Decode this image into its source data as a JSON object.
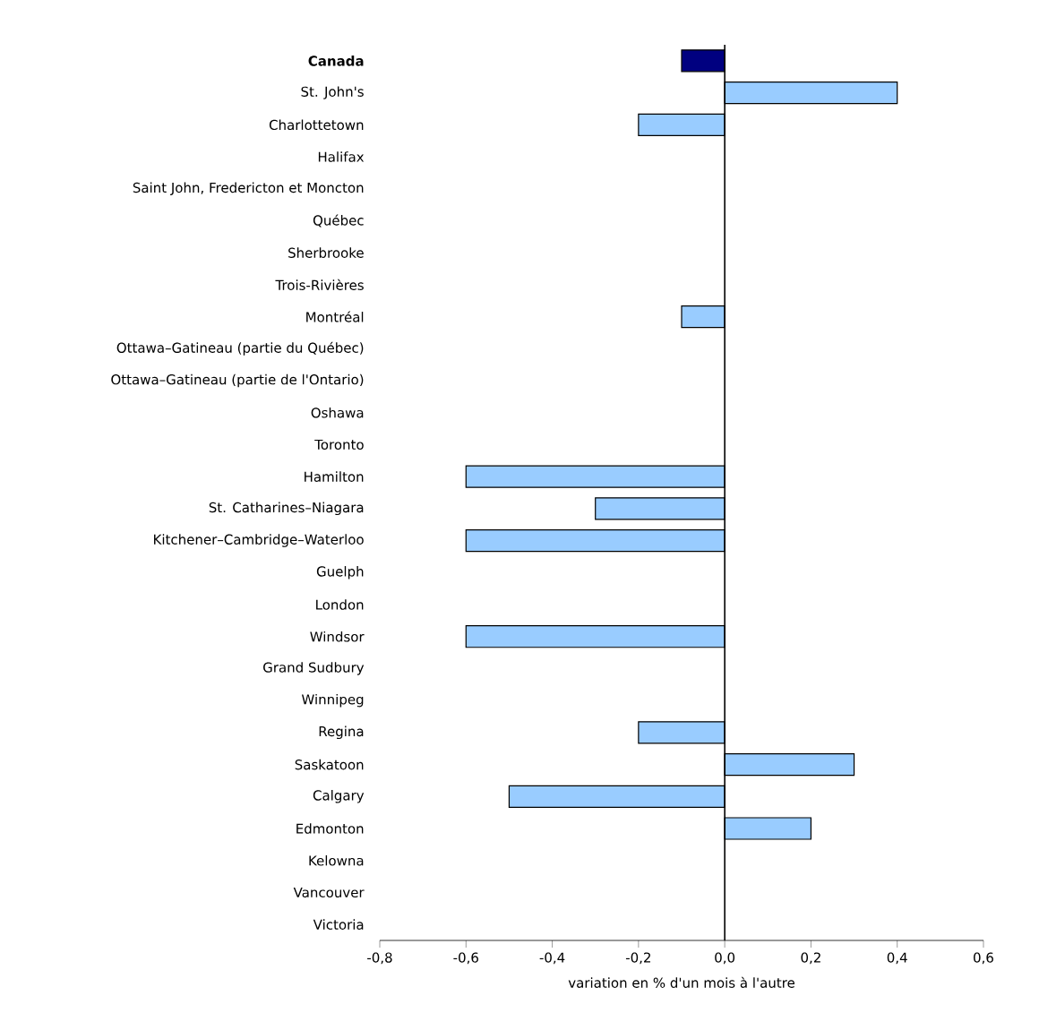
{
  "chart_data": {
    "type": "bar",
    "orientation": "horizontal",
    "xlabel": "variation en % d'un mois à l'autre",
    "categories": [
      "Canada",
      "St. John's",
      "Charlottetown",
      "Halifax",
      "Saint John, Fredericton et Moncton",
      "Québec",
      "Sherbrooke",
      "Trois-Rivières",
      "Montréal",
      "Ottawa–Gatineau (partie du Québec)",
      "Ottawa–Gatineau (partie de l'Ontario)",
      "Oshawa",
      "Toronto",
      "Hamilton",
      "St. Catharines–Niagara",
      "Kitchener–Cambridge–Waterloo",
      "Guelph",
      "London",
      "Windsor",
      "Grand Sudbury",
      "Winnipeg",
      "Regina",
      "Saskatoon",
      "Calgary",
      "Edmonton",
      "Kelowna",
      "Vancouver",
      "Victoria"
    ],
    "values": [
      -0.1,
      0.4,
      -0.2,
      0,
      0,
      0,
      0,
      0,
      -0.1,
      0,
      0,
      0,
      0,
      -0.6,
      -0.3,
      -0.6,
      0,
      0,
      -0.6,
      0,
      0,
      -0.2,
      0.3,
      -0.5,
      0.2,
      0,
      0,
      0
    ],
    "colors": [
      "#000080",
      "#99ccff",
      "#99ccff",
      "#99ccff",
      "#99ccff",
      "#99ccff",
      "#99ccff",
      "#99ccff",
      "#99ccff",
      "#99ccff",
      "#99ccff",
      "#99ccff",
      "#99ccff",
      "#99ccff",
      "#99ccff",
      "#99ccff",
      "#99ccff",
      "#99ccff",
      "#99ccff",
      "#99ccff",
      "#99ccff",
      "#99ccff",
      "#99ccff",
      "#99ccff",
      "#99ccff",
      "#99ccff",
      "#99ccff",
      "#99ccff"
    ],
    "xlim": [
      -0.8,
      0.6
    ],
    "xticks": [
      {
        "value": -0.8,
        "label": "-0,8"
      },
      {
        "value": -0.6,
        "label": "-0,6"
      },
      {
        "value": -0.4,
        "label": "-0,4"
      },
      {
        "value": -0.2,
        "label": "-0,2"
      },
      {
        "value": 0,
        "label": "0,0"
      },
      {
        "value": 0.2,
        "label": "0,2"
      },
      {
        "value": 0.4,
        "label": "0,4"
      },
      {
        "value": 0.6,
        "label": "0,6"
      }
    ],
    "ref_lines": [
      {
        "axis": "x",
        "value": 0
      }
    ]
  }
}
